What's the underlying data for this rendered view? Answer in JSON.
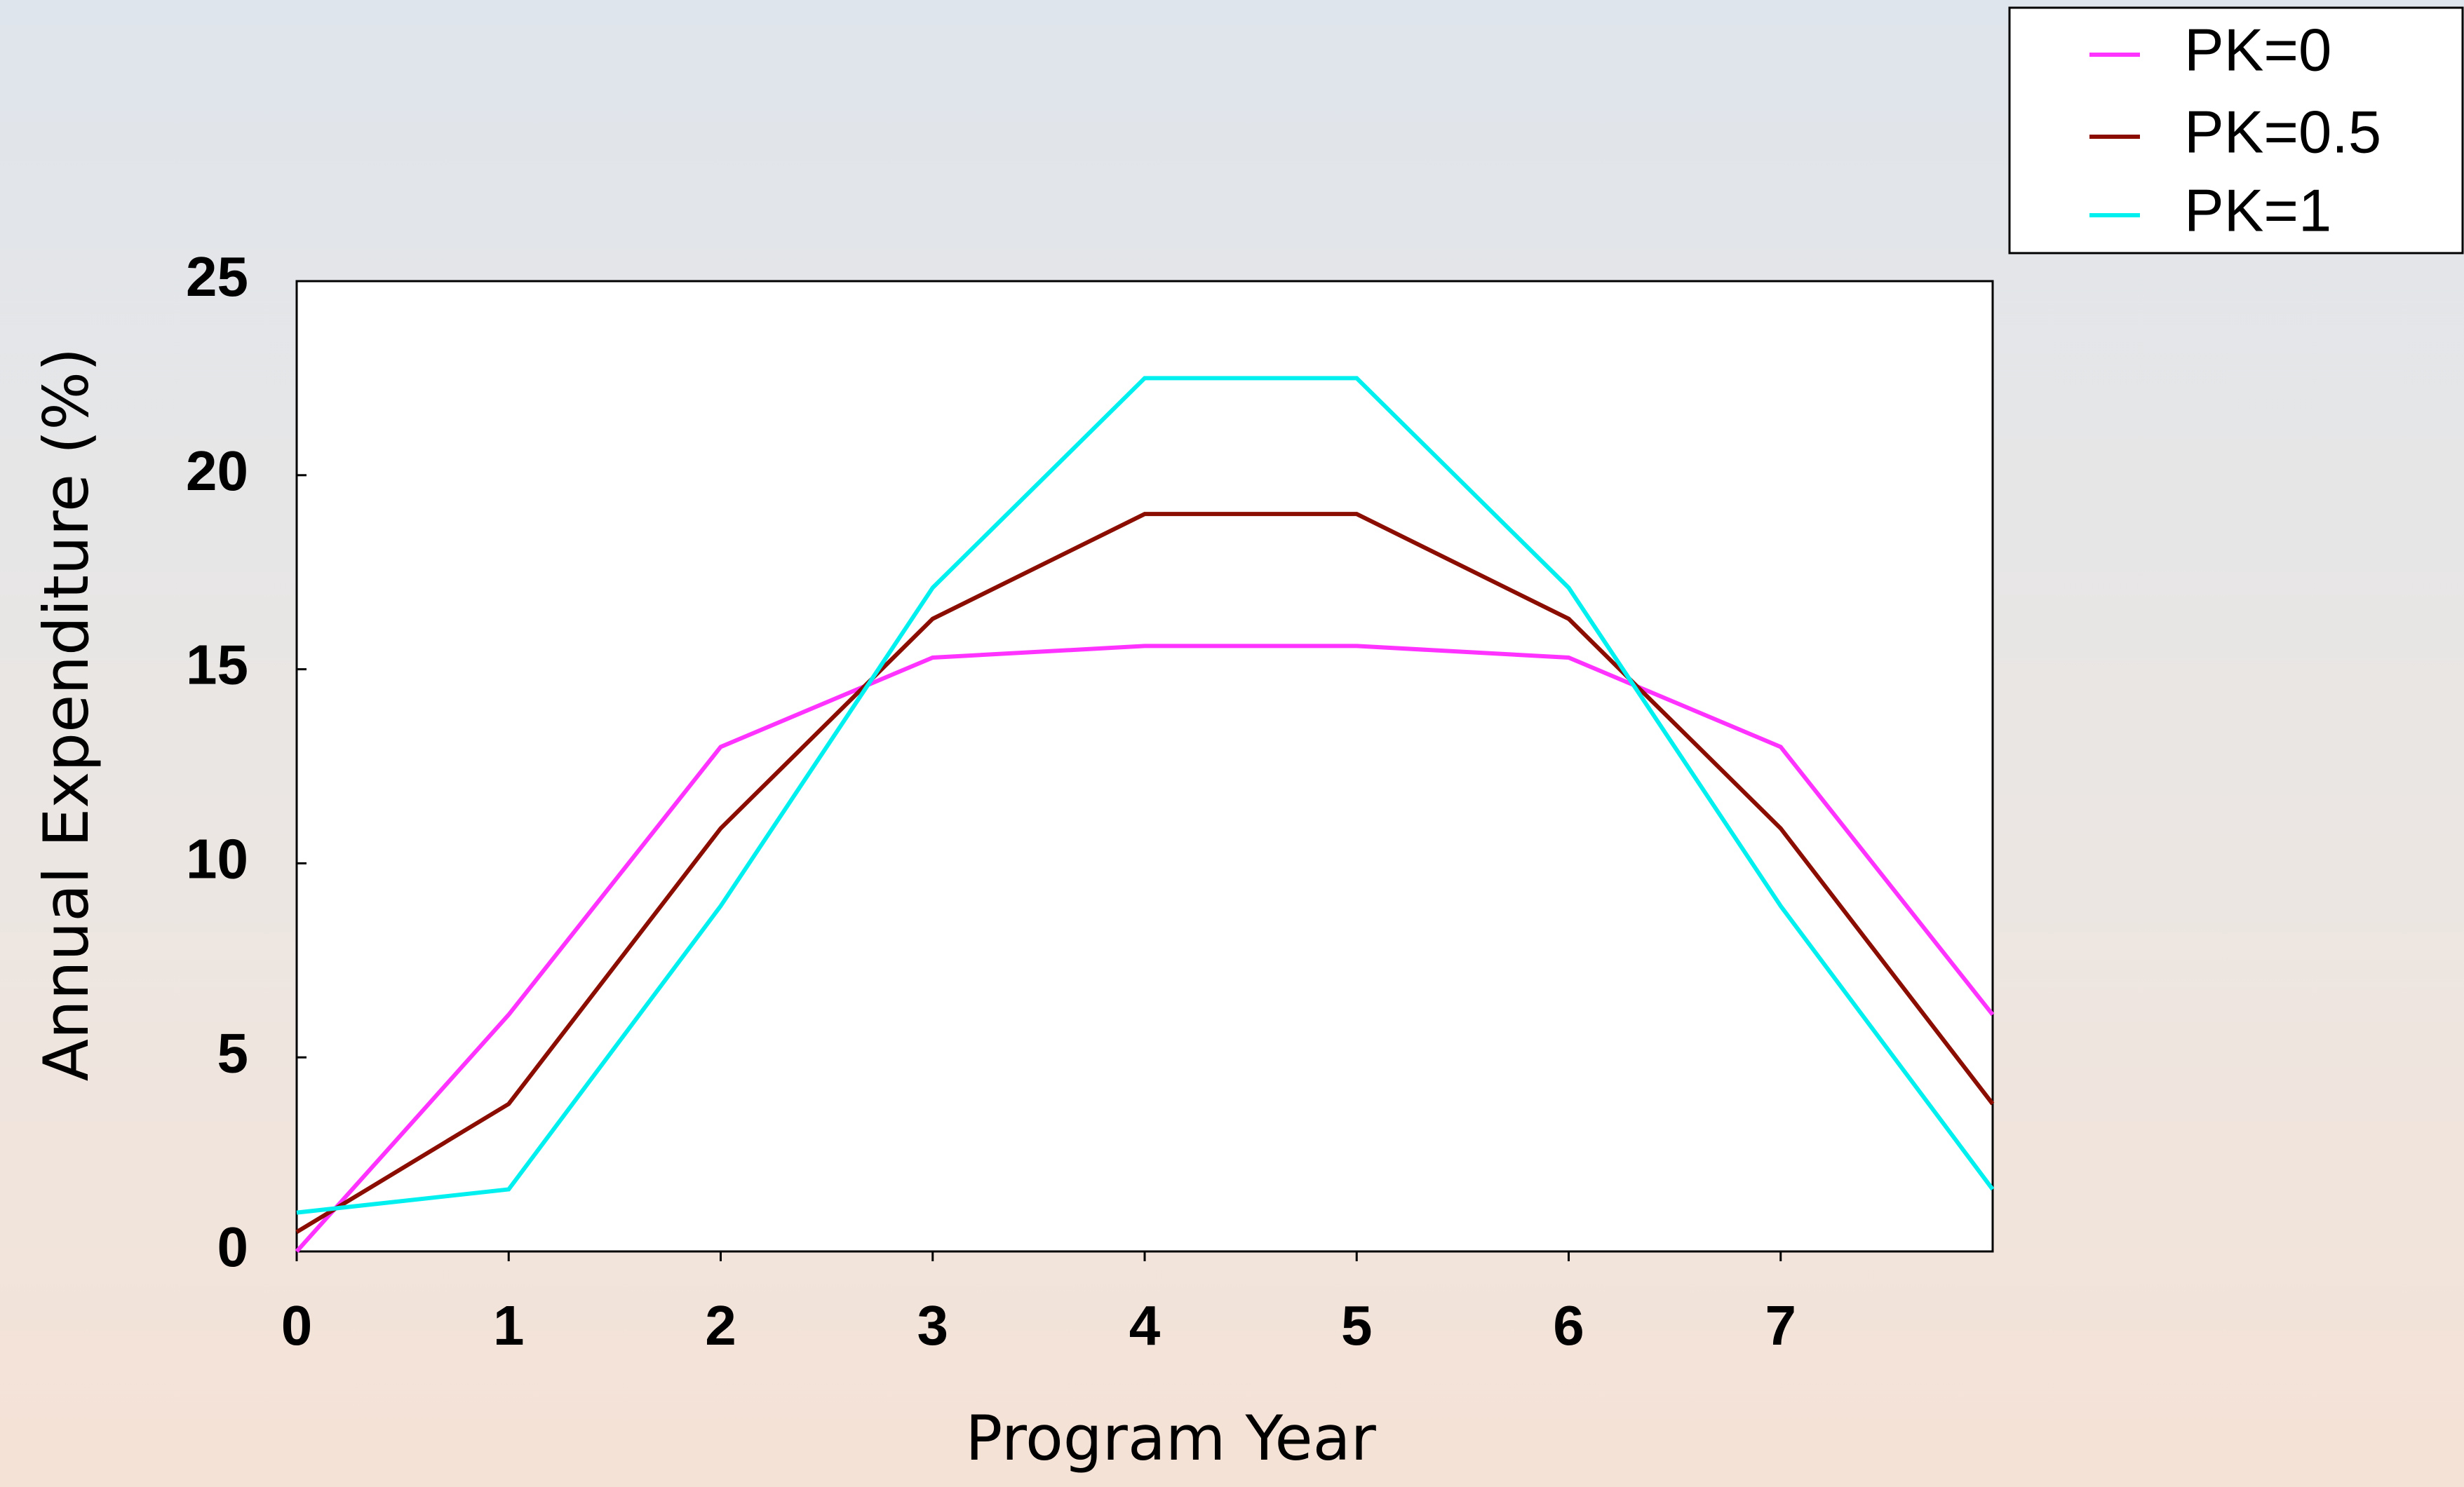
{
  "chart_data": {
    "type": "line",
    "x": [
      0,
      1,
      2,
      3,
      4,
      5,
      6,
      7,
      8
    ],
    "series": [
      {
        "name": "PK=0",
        "color": "#ff33ff",
        "values": [
          0,
          6.1,
          13.0,
          15.3,
          15.6,
          15.6,
          15.3,
          13.0,
          6.1
        ]
      },
      {
        "name": "PK=0.5",
        "color": "#8b0d00",
        "values": [
          0.5,
          3.8,
          10.9,
          16.3,
          19.0,
          19.0,
          16.3,
          10.9,
          3.8
        ]
      },
      {
        "name": "PK=1",
        "color": "#00f0f0",
        "values": [
          1.0,
          1.6,
          8.9,
          17.1,
          22.5,
          22.5,
          17.1,
          8.9,
          1.6
        ]
      }
    ],
    "xlabel": "Program Year",
    "ylabel": "Annual Expenditure (%)",
    "xlim": [
      0,
      8
    ],
    "xticks": [
      0,
      1,
      2,
      3,
      4,
      5,
      6,
      7
    ],
    "ylim": [
      0,
      25
    ],
    "yticks": [
      0,
      5,
      10,
      15,
      20,
      25
    ],
    "legend": "upper right"
  }
}
